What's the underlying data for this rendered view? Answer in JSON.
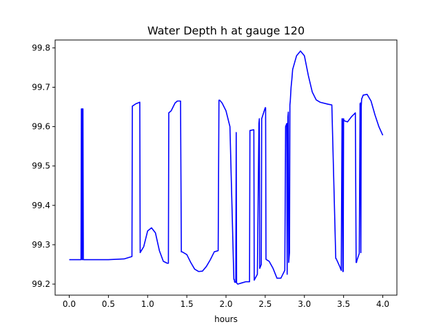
{
  "chart_data": {
    "type": "line",
    "title": "Water Depth h at gauge 120",
    "xlabel": "hours",
    "ylabel": "",
    "xlim": [
      -0.18,
      4.18
    ],
    "ylim": [
      99.172,
      99.82
    ],
    "grid": false,
    "x_ticks": [
      0.0,
      0.5,
      1.0,
      1.5,
      2.0,
      2.5,
      3.0,
      3.5,
      4.0
    ],
    "x_tick_labels": [
      "0.0",
      "0.5",
      "1.0",
      "1.5",
      "2.0",
      "2.5",
      "3.0",
      "3.5",
      "4.0"
    ],
    "y_ticks": [
      99.2,
      99.3,
      99.4,
      99.5,
      99.6,
      99.7,
      99.8
    ],
    "y_tick_labels": [
      "99.2",
      "99.3",
      "99.4",
      "99.5",
      "99.6",
      "99.7",
      "99.8"
    ],
    "series": [
      {
        "color": "#0000ff",
        "x": [
          0.0,
          0.15,
          0.155,
          0.16,
          0.165,
          0.17,
          0.175,
          0.18,
          0.5,
          0.7,
          0.8,
          0.805,
          0.85,
          0.9,
          0.905,
          0.95,
          1.0,
          1.05,
          1.1,
          1.15,
          1.2,
          1.25,
          1.265,
          1.27,
          1.3,
          1.35,
          1.38,
          1.42,
          1.43,
          1.44,
          1.5,
          1.55,
          1.6,
          1.65,
          1.7,
          1.75,
          1.8,
          1.85,
          1.9,
          1.91,
          1.92,
          1.95,
          2.0,
          2.05,
          2.1,
          2.105,
          2.11,
          2.125,
          2.13,
          2.135,
          2.15,
          2.2,
          2.25,
          2.3,
          2.305,
          2.35,
          2.355,
          2.36,
          2.4,
          2.42,
          2.425,
          2.43,
          2.45,
          2.455,
          2.5,
          2.505,
          2.51,
          2.55,
          2.6,
          2.65,
          2.7,
          2.75,
          2.76,
          2.775,
          2.78,
          2.79,
          2.795,
          2.8,
          2.81,
          2.815,
          2.82,
          2.83,
          2.84,
          2.85,
          2.9,
          2.95,
          3.0,
          3.05,
          3.1,
          3.15,
          3.2,
          3.3,
          3.35,
          3.4,
          3.405,
          3.45,
          3.47,
          3.48,
          3.485,
          3.49,
          3.495,
          3.5,
          3.505,
          3.55,
          3.6,
          3.65,
          3.66,
          3.665,
          3.67,
          3.7,
          3.71,
          3.715,
          3.72,
          3.725,
          3.73,
          3.75,
          3.8,
          3.85,
          3.9,
          3.95,
          4.0
        ],
        "values": [
          99.262,
          99.262,
          99.645,
          99.645,
          99.262,
          99.645,
          99.645,
          99.262,
          99.262,
          99.264,
          99.27,
          99.652,
          99.658,
          99.662,
          99.28,
          99.295,
          99.335,
          99.343,
          99.33,
          99.285,
          99.258,
          99.253,
          99.253,
          99.635,
          99.64,
          99.66,
          99.665,
          99.665,
          99.282,
          99.282,
          99.275,
          99.255,
          99.238,
          99.232,
          99.233,
          99.245,
          99.262,
          99.282,
          99.285,
          99.667,
          99.667,
          99.66,
          99.64,
          99.6,
          99.212,
          99.212,
          99.205,
          99.205,
          99.585,
          99.203,
          99.2,
          99.203,
          99.206,
          99.206,
          99.59,
          99.592,
          99.592,
          99.21,
          99.225,
          99.608,
          99.62,
          99.24,
          99.25,
          99.62,
          99.648,
          99.648,
          99.263,
          99.258,
          99.24,
          99.215,
          99.215,
          99.235,
          99.6,
          99.608,
          99.225,
          99.625,
          99.637,
          99.255,
          99.28,
          99.655,
          99.665,
          99.7,
          99.72,
          99.745,
          99.78,
          99.792,
          99.78,
          99.73,
          99.688,
          99.668,
          99.662,
          99.657,
          99.655,
          99.265,
          99.265,
          99.245,
          99.235,
          99.62,
          99.62,
          99.232,
          99.232,
          99.62,
          99.615,
          99.612,
          99.625,
          99.635,
          99.255,
          99.255,
          99.26,
          99.278,
          99.658,
          99.66,
          99.28,
          99.65,
          99.67,
          99.68,
          99.682,
          99.665,
          99.63,
          99.6,
          99.578
        ]
      }
    ]
  }
}
